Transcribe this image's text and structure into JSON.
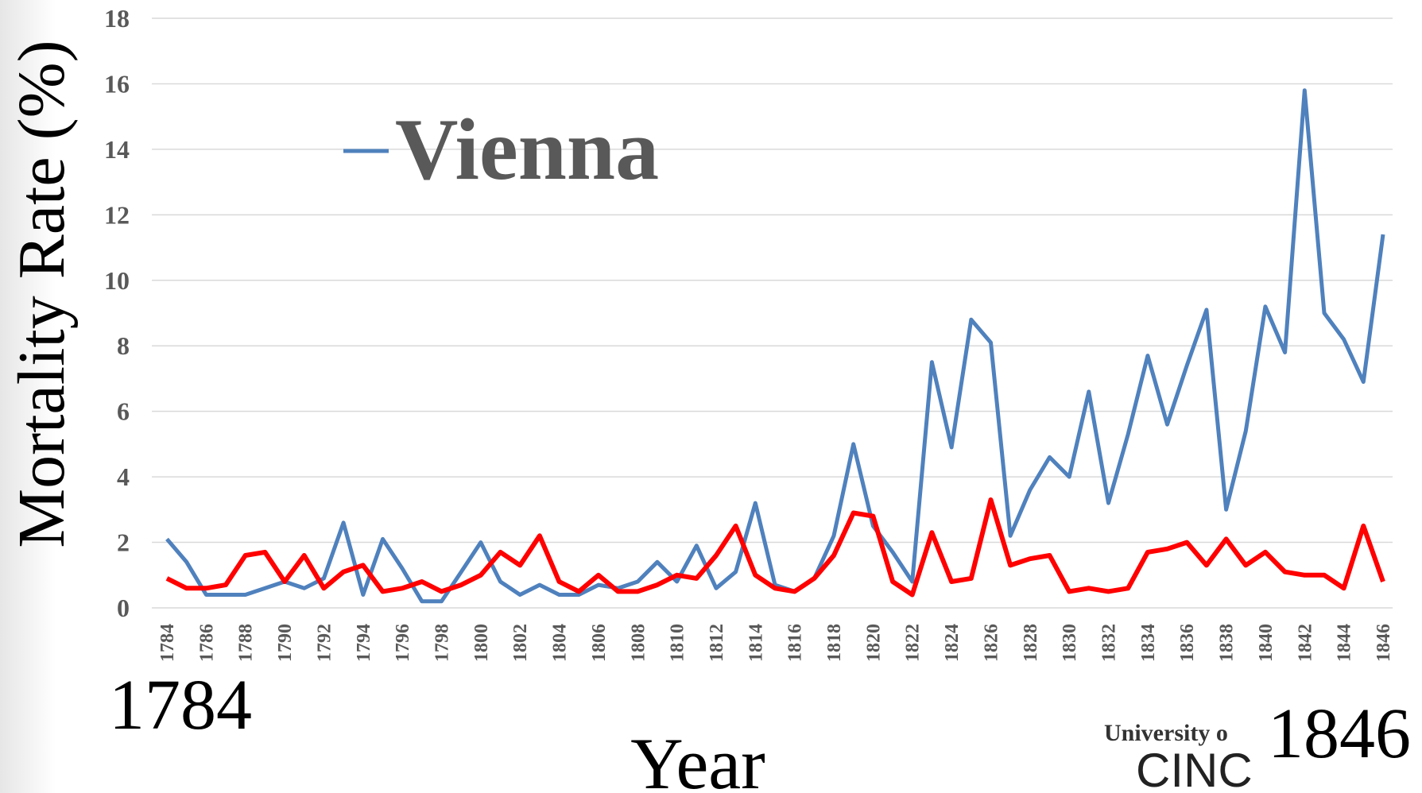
{
  "chart_data": {
    "type": "line",
    "y_label": "Mortality Rate (%)",
    "x_label": "Year",
    "annotations": [
      "1784",
      "1846",
      "University o",
      "CINC"
    ],
    "x": [
      1784,
      1785,
      1786,
      1787,
      1788,
      1789,
      1790,
      1791,
      1792,
      1793,
      1794,
      1795,
      1796,
      1797,
      1798,
      1799,
      1800,
      1801,
      1802,
      1803,
      1804,
      1805,
      1806,
      1807,
      1808,
      1809,
      1810,
      1811,
      1812,
      1813,
      1814,
      1815,
      1816,
      1817,
      1818,
      1819,
      1820,
      1821,
      1822,
      1823,
      1824,
      1825,
      1826,
      1827,
      1828,
      1829,
      1830,
      1831,
      1832,
      1833,
      1834,
      1835,
      1836,
      1837,
      1838,
      1839,
      1840,
      1841,
      1842,
      1843,
      1844,
      1845,
      1846
    ],
    "xlim": [
      1784,
      1846
    ],
    "xticks": [
      1784,
      1786,
      1788,
      1790,
      1792,
      1794,
      1796,
      1798,
      1800,
      1802,
      1804,
      1806,
      1808,
      1810,
      1812,
      1814,
      1816,
      1818,
      1820,
      1822,
      1824,
      1826,
      1828,
      1830,
      1832,
      1834,
      1836,
      1838,
      1840,
      1842,
      1844,
      1846
    ],
    "ylim": [
      0,
      18
    ],
    "yticks": [
      0,
      2,
      4,
      6,
      8,
      10,
      12,
      14,
      16,
      18
    ],
    "grid": true,
    "legend_position": "top-left",
    "series": [
      {
        "name": "Vienna",
        "color": "#4f81bd",
        "values": [
          2.1,
          1.4,
          0.4,
          0.4,
          0.4,
          0.6,
          0.8,
          0.6,
          0.9,
          2.6,
          0.4,
          2.1,
          1.2,
          0.2,
          0.2,
          1.1,
          2.0,
          0.8,
          0.4,
          0.7,
          0.4,
          0.4,
          0.7,
          0.6,
          0.8,
          1.4,
          0.8,
          1.9,
          0.6,
          1.1,
          3.2,
          0.7,
          0.5,
          0.9,
          2.2,
          5.0,
          2.5,
          1.7,
          0.8,
          7.5,
          4.9,
          8.8,
          8.1,
          2.2,
          3.6,
          4.6,
          4.0,
          6.6,
          3.2,
          5.3,
          7.7,
          5.6,
          7.4,
          9.1,
          3.0,
          5.4,
          9.2,
          7.8,
          15.8,
          9.0,
          8.2,
          6.9,
          11.4
        ]
      },
      {
        "color": "#ff0000",
        "values": [
          0.9,
          0.6,
          0.6,
          0.7,
          1.6,
          1.7,
          0.8,
          1.6,
          0.6,
          1.1,
          1.3,
          0.5,
          0.6,
          0.8,
          0.5,
          0.7,
          1.0,
          1.7,
          1.3,
          2.2,
          0.8,
          0.5,
          1.0,
          0.5,
          0.5,
          0.7,
          1.0,
          0.9,
          1.6,
          2.5,
          1.0,
          0.6,
          0.5,
          0.9,
          1.6,
          2.9,
          2.8,
          0.8,
          0.4,
          2.3,
          0.8,
          0.9,
          3.3,
          1.3,
          1.5,
          1.6,
          0.5,
          0.6,
          0.5,
          0.6,
          1.7,
          1.8,
          2.0,
          1.3,
          2.1,
          1.3,
          1.7,
          1.1,
          1.0,
          1.0,
          0.6,
          2.5,
          0.8
        ]
      }
    ]
  }
}
